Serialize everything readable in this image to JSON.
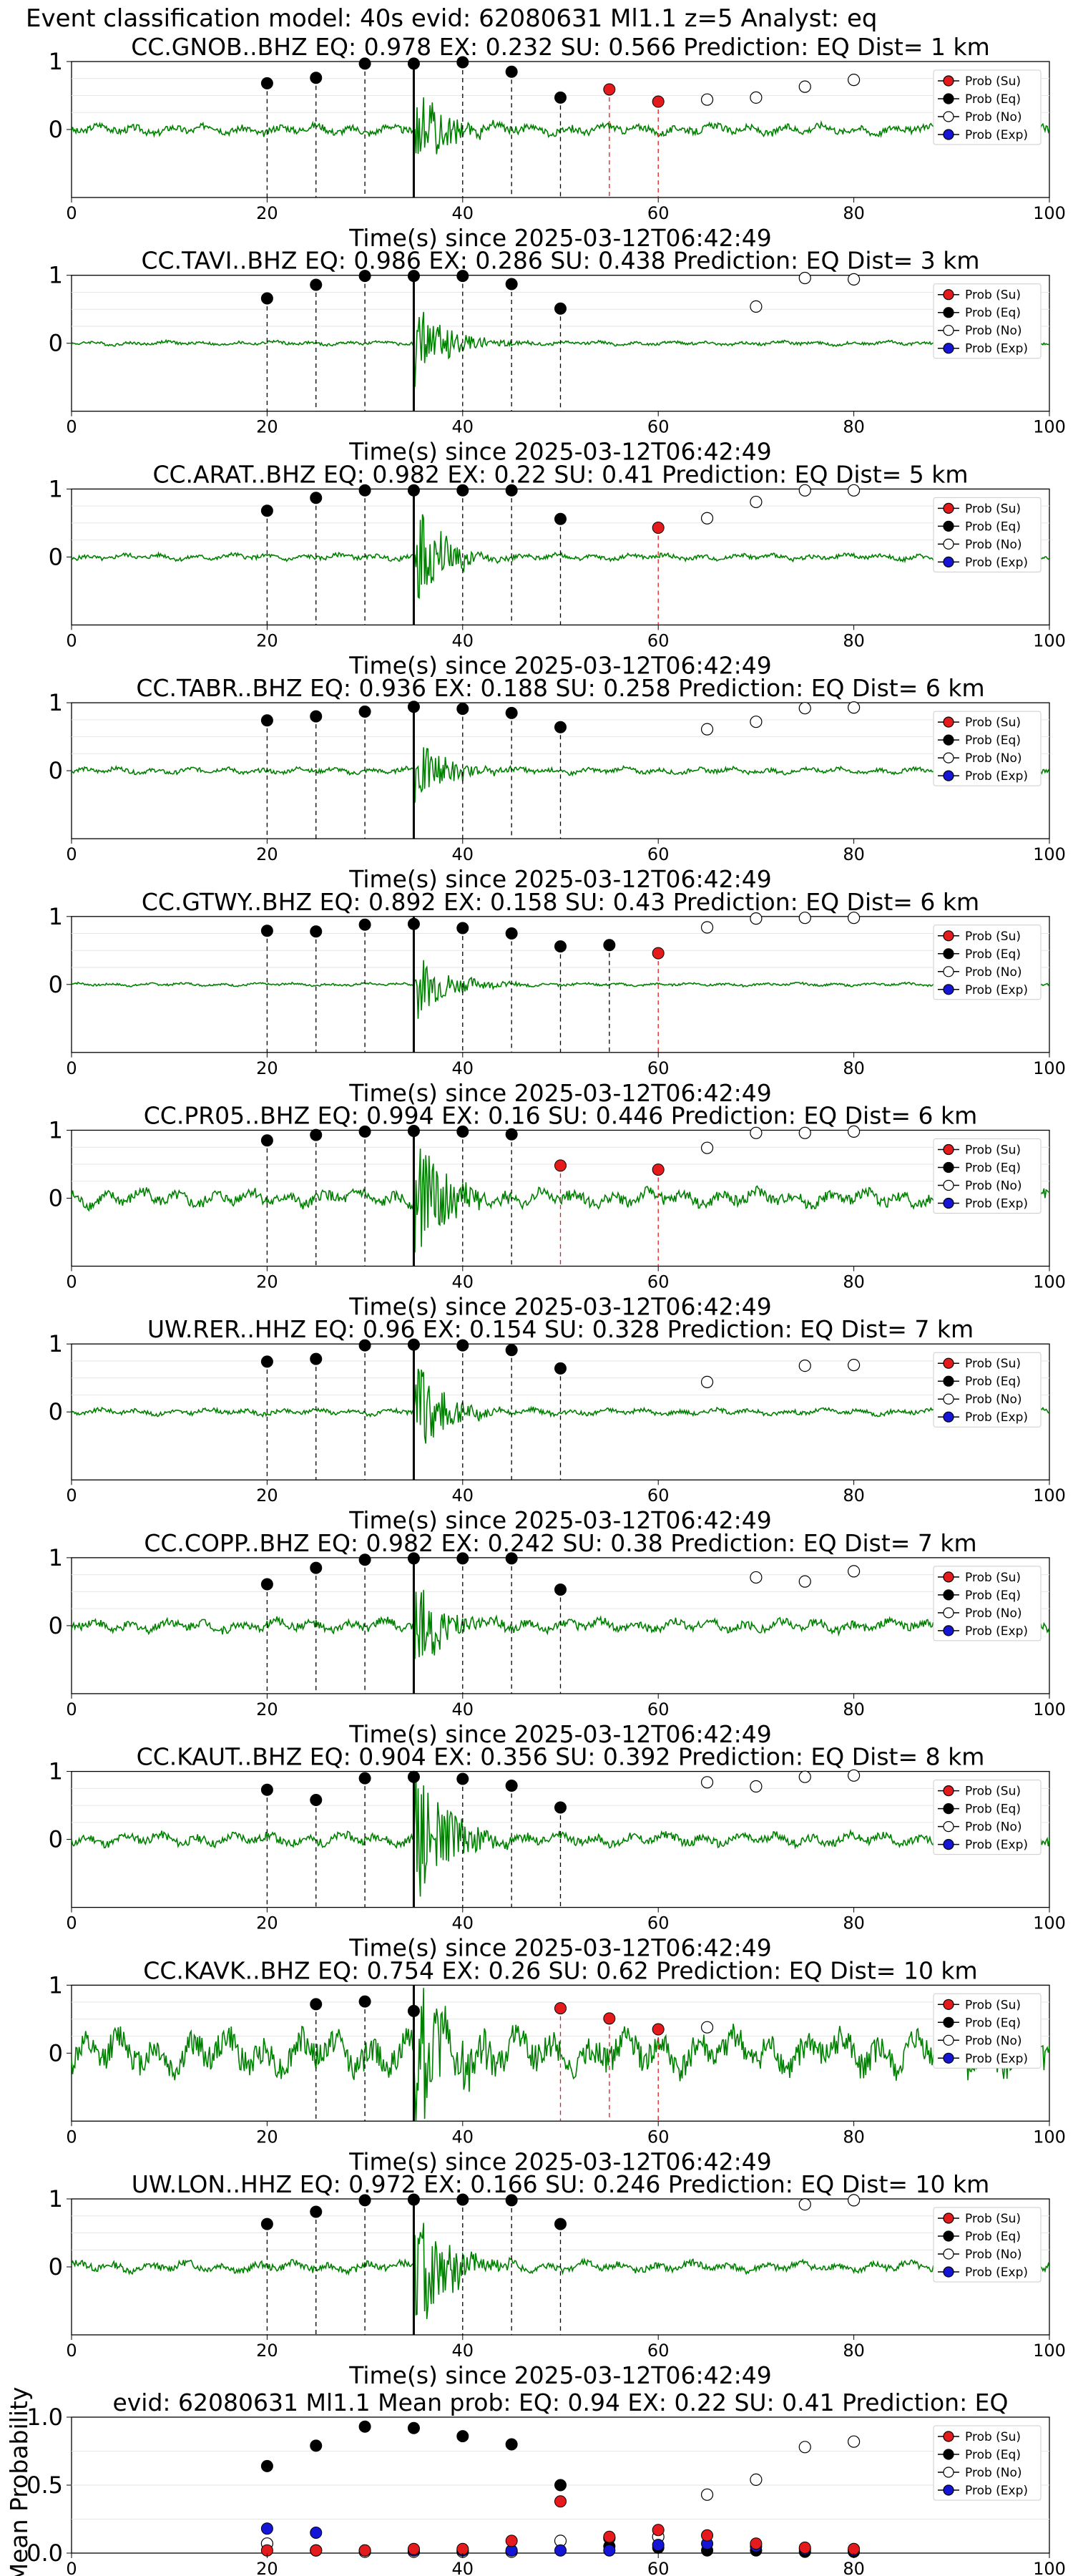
{
  "figure_title": "Event classification model: 40s evid: 62080631 Ml1.1 z=5 Analyst: eq",
  "xlabel": "Time(s) since 2025-03-12T06:42:49",
  "legend": [
    {
      "label": "Prob (Su)",
      "color": "#e41a1c"
    },
    {
      "label": "Prob (Eq)",
      "color": "#000000"
    },
    {
      "label": "Prob (No)",
      "color": "#ffffff"
    },
    {
      "label": "Prob (Exp)",
      "color": "#1515d6"
    }
  ],
  "colors": {
    "waveform": "#008000",
    "su_line": "#e41a1c",
    "eq_line": "#000000"
  },
  "chart_data": {
    "type": "scatter",
    "xlim": [
      0,
      100
    ],
    "xticks": [
      0,
      20,
      40,
      60,
      80,
      100
    ],
    "window_starts": [
      20,
      25,
      30,
      35,
      40,
      45,
      50,
      55,
      60,
      65,
      70,
      75,
      80
    ],
    "p_arrival": 35,
    "stations": [
      {
        "title": "CC.GNOB..BHZ   EQ: 0.978  EX: 0.232  SU: 0.566   Prediction: EQ    Dist= 1 km",
        "ylim": [
          -1,
          1
        ],
        "yticks": [
          "1",
          "0"
        ],
        "amp": 0.5,
        "noise": 0.05,
        "eq": [
          [
            20,
            0.68
          ],
          [
            25,
            0.76
          ],
          [
            30,
            0.97
          ],
          [
            35,
            0.97
          ],
          [
            40,
            0.99
          ],
          [
            45,
            0.85
          ],
          [
            50,
            0.47
          ]
        ],
        "su": [
          [
            55,
            0.59
          ],
          [
            60,
            0.41
          ]
        ],
        "no": [
          [
            65,
            0.44
          ],
          [
            70,
            0.47
          ],
          [
            75,
            0.63
          ],
          [
            80,
            0.73
          ]
        ]
      },
      {
        "title": "CC.TAVI..BHZ   EQ: 0.986  EX: 0.286  SU: 0.438   Prediction: EQ    Dist= 3 km",
        "ylim": [
          -1,
          1
        ],
        "yticks": [
          "1",
          "0"
        ],
        "amp": 0.5,
        "noise": 0.02,
        "eq": [
          [
            20,
            0.66
          ],
          [
            25,
            0.86
          ],
          [
            30,
            0.99
          ],
          [
            35,
            0.99
          ],
          [
            40,
            0.99
          ],
          [
            45,
            0.87
          ],
          [
            50,
            0.51
          ]
        ],
        "su": [],
        "no": [
          [
            70,
            0.54
          ],
          [
            75,
            0.96
          ],
          [
            80,
            0.94
          ]
        ]
      },
      {
        "title": "CC.ARAT..BHZ   EQ: 0.982  EX: 0.22  SU: 0.41   Prediction: EQ    Dist= 5 km",
        "ylim": [
          -1,
          1
        ],
        "yticks": [
          "1",
          "0"
        ],
        "amp": 0.6,
        "noise": 0.03,
        "eq": [
          [
            20,
            0.68
          ],
          [
            25,
            0.87
          ],
          [
            30,
            0.98
          ],
          [
            35,
            0.98
          ],
          [
            40,
            0.98
          ],
          [
            45,
            0.98
          ],
          [
            50,
            0.56
          ]
        ],
        "su": [
          [
            60,
            0.43
          ]
        ],
        "no": [
          [
            65,
            0.57
          ],
          [
            70,
            0.81
          ],
          [
            75,
            0.98
          ],
          [
            80,
            0.98
          ]
        ]
      },
      {
        "title": "CC.TABR..BHZ   EQ: 0.936  EX: 0.188  SU: 0.258   Prediction: EQ    Dist= 6 km",
        "ylim": [
          -1,
          1
        ],
        "yticks": [
          "1",
          "0"
        ],
        "amp": 0.4,
        "noise": 0.03,
        "eq": [
          [
            20,
            0.74
          ],
          [
            25,
            0.8
          ],
          [
            30,
            0.87
          ],
          [
            35,
            0.94
          ],
          [
            40,
            0.91
          ],
          [
            45,
            0.85
          ],
          [
            50,
            0.64
          ]
        ],
        "su": [],
        "no": [
          [
            65,
            0.61
          ],
          [
            70,
            0.72
          ],
          [
            75,
            0.92
          ],
          [
            80,
            0.93
          ]
        ]
      },
      {
        "title": "CC.GTWY..BHZ   EQ: 0.892  EX: 0.158  SU: 0.43   Prediction: EQ    Dist= 6 km",
        "ylim": [
          -1,
          1
        ],
        "yticks": [
          "1",
          "0"
        ],
        "amp": 0.4,
        "noise": 0.015,
        "eq": [
          [
            20,
            0.79
          ],
          [
            25,
            0.78
          ],
          [
            30,
            0.88
          ],
          [
            35,
            0.89
          ],
          [
            40,
            0.83
          ],
          [
            45,
            0.75
          ],
          [
            50,
            0.56
          ],
          [
            55,
            0.58
          ]
        ],
        "su": [
          [
            60,
            0.46
          ]
        ],
        "no": [
          [
            65,
            0.84
          ],
          [
            70,
            0.97
          ],
          [
            75,
            0.98
          ],
          [
            80,
            0.98
          ]
        ]
      },
      {
        "title": "CC.PR05..BHZ   EQ: 0.994  EX: 0.16  SU: 0.446   Prediction: EQ    Dist= 6 km",
        "ylim": [
          -1,
          1
        ],
        "yticks": [
          "1",
          "0"
        ],
        "amp": 0.7,
        "noise": 0.08,
        "eq": [
          [
            20,
            0.85
          ],
          [
            25,
            0.93
          ],
          [
            30,
            0.98
          ],
          [
            35,
            0.99
          ],
          [
            40,
            0.98
          ],
          [
            45,
            0.94
          ]
        ],
        "su": [
          [
            50,
            0.48
          ],
          [
            60,
            0.42
          ]
        ],
        "no": [
          [
            65,
            0.74
          ],
          [
            70,
            0.96
          ],
          [
            75,
            0.96
          ],
          [
            80,
            0.98
          ]
        ]
      },
      {
        "title": "UW.RER..HHZ   EQ: 0.96  EX: 0.154  SU: 0.328   Prediction: EQ    Dist= 7 km",
        "ylim": [
          -1,
          1
        ],
        "yticks": [
          "1",
          "0"
        ],
        "amp": 0.6,
        "noise": 0.03,
        "eq": [
          [
            20,
            0.74
          ],
          [
            25,
            0.78
          ],
          [
            30,
            0.98
          ],
          [
            35,
            0.99
          ],
          [
            40,
            0.98
          ],
          [
            45,
            0.91
          ],
          [
            50,
            0.64
          ]
        ],
        "su": [],
        "no": [
          [
            65,
            0.44
          ],
          [
            75,
            0.68
          ],
          [
            80,
            0.69
          ]
        ]
      },
      {
        "title": "CC.COPP..BHZ   EQ: 0.982  EX: 0.242  SU: 0.38   Prediction: EQ    Dist= 7 km",
        "ylim": [
          -1,
          1
        ],
        "yticks": [
          "1",
          "0"
        ],
        "amp": 0.5,
        "noise": 0.06,
        "eq": [
          [
            20,
            0.61
          ],
          [
            25,
            0.85
          ],
          [
            30,
            0.97
          ],
          [
            35,
            0.99
          ],
          [
            40,
            0.99
          ],
          [
            45,
            0.99
          ],
          [
            50,
            0.53
          ]
        ],
        "su": [],
        "no": [
          [
            70,
            0.71
          ],
          [
            75,
            0.65
          ],
          [
            80,
            0.8
          ]
        ]
      },
      {
        "title": "CC.KAUT..BHZ   EQ: 0.904  EX: 0.356  SU: 0.392   Prediction: EQ    Dist= 8 km",
        "ylim": [
          -1,
          1
        ],
        "yticks": [
          "1",
          "0"
        ],
        "amp": 0.9,
        "noise": 0.06,
        "eq": [
          [
            20,
            0.73
          ],
          [
            25,
            0.58
          ],
          [
            30,
            0.9
          ],
          [
            35,
            0.92
          ],
          [
            40,
            0.89
          ],
          [
            45,
            0.79
          ],
          [
            50,
            0.47
          ]
        ],
        "su": [],
        "no": [
          [
            65,
            0.84
          ],
          [
            70,
            0.78
          ],
          [
            75,
            0.92
          ],
          [
            80,
            0.94
          ]
        ]
      },
      {
        "title": "CC.KAVK..BHZ   EQ: 0.754  EX: 0.26  SU: 0.62   Prediction: EQ    Dist= 10 km",
        "ylim": [
          -1,
          1
        ],
        "yticks": [
          "1",
          "0"
        ],
        "amp": 1.0,
        "noise": 0.2,
        "eq": [
          [
            25,
            0.72
          ],
          [
            30,
            0.76
          ],
          [
            35,
            0.62
          ]
        ],
        "su": [
          [
            50,
            0.66
          ],
          [
            55,
            0.51
          ],
          [
            60,
            0.35
          ]
        ],
        "no": [
          [
            65,
            0.38
          ]
        ]
      },
      {
        "title": "UW.LON..HHZ   EQ: 0.972  EX: 0.166  SU: 0.246   Prediction: EQ    Dist= 10 km",
        "ylim": [
          -1,
          1
        ],
        "yticks": [
          "1",
          "0"
        ],
        "amp": 0.8,
        "noise": 0.05,
        "eq": [
          [
            20,
            0.63
          ],
          [
            25,
            0.81
          ],
          [
            30,
            0.98
          ],
          [
            35,
            0.99
          ],
          [
            40,
            0.99
          ],
          [
            45,
            0.98
          ],
          [
            50,
            0.63
          ]
        ],
        "su": [],
        "no": [
          [
            75,
            0.92
          ],
          [
            80,
            0.98
          ]
        ]
      }
    ],
    "summary": {
      "title": "evid: 62080631  Ml1.1   Mean prob:  EQ: 0.94  EX: 0.22  SU: 0.41   Prediction: EQ",
      "ylabel": "Mean Probability",
      "ylim": [
        0,
        1
      ],
      "yticks": [
        "0.0",
        "0.5",
        "1.0"
      ],
      "eq": [
        [
          20,
          0.64
        ],
        [
          25,
          0.79
        ],
        [
          30,
          0.93
        ],
        [
          35,
          0.92
        ],
        [
          40,
          0.86
        ],
        [
          45,
          0.8
        ],
        [
          50,
          0.5
        ],
        [
          55,
          0.05
        ],
        [
          60,
          0.04
        ],
        [
          65,
          0.02
        ],
        [
          70,
          0.02
        ],
        [
          75,
          0.01
        ],
        [
          80,
          0.01
        ]
      ],
      "su": [
        [
          20,
          0.02
        ],
        [
          25,
          0.02
        ],
        [
          30,
          0.02
        ],
        [
          35,
          0.03
        ],
        [
          40,
          0.03
        ],
        [
          45,
          0.09
        ],
        [
          50,
          0.38
        ],
        [
          55,
          0.12
        ],
        [
          60,
          0.17
        ],
        [
          65,
          0.13
        ],
        [
          70,
          0.07
        ],
        [
          75,
          0.04
        ],
        [
          80,
          0.03
        ]
      ],
      "no": [
        [
          20,
          0.07
        ],
        [
          25,
          0.02
        ],
        [
          30,
          0.01
        ],
        [
          35,
          0.01
        ],
        [
          40,
          0.01
        ],
        [
          45,
          0.01
        ],
        [
          50,
          0.09
        ],
        [
          55,
          0.11
        ],
        [
          60,
          0.12
        ],
        [
          65,
          0.43
        ],
        [
          70,
          0.54
        ],
        [
          75,
          0.78
        ],
        [
          80,
          0.82
        ]
      ],
      "ex": [
        [
          20,
          0.18
        ],
        [
          25,
          0.15
        ],
        [
          30,
          0.02
        ],
        [
          35,
          0.02
        ],
        [
          40,
          0.02
        ],
        [
          45,
          0.02
        ],
        [
          50,
          0.02
        ],
        [
          55,
          0.02
        ],
        [
          60,
          0.06
        ],
        [
          65,
          0.07
        ],
        [
          70,
          0.05
        ],
        [
          75,
          0.03
        ],
        [
          80,
          0.02
        ]
      ]
    }
  }
}
